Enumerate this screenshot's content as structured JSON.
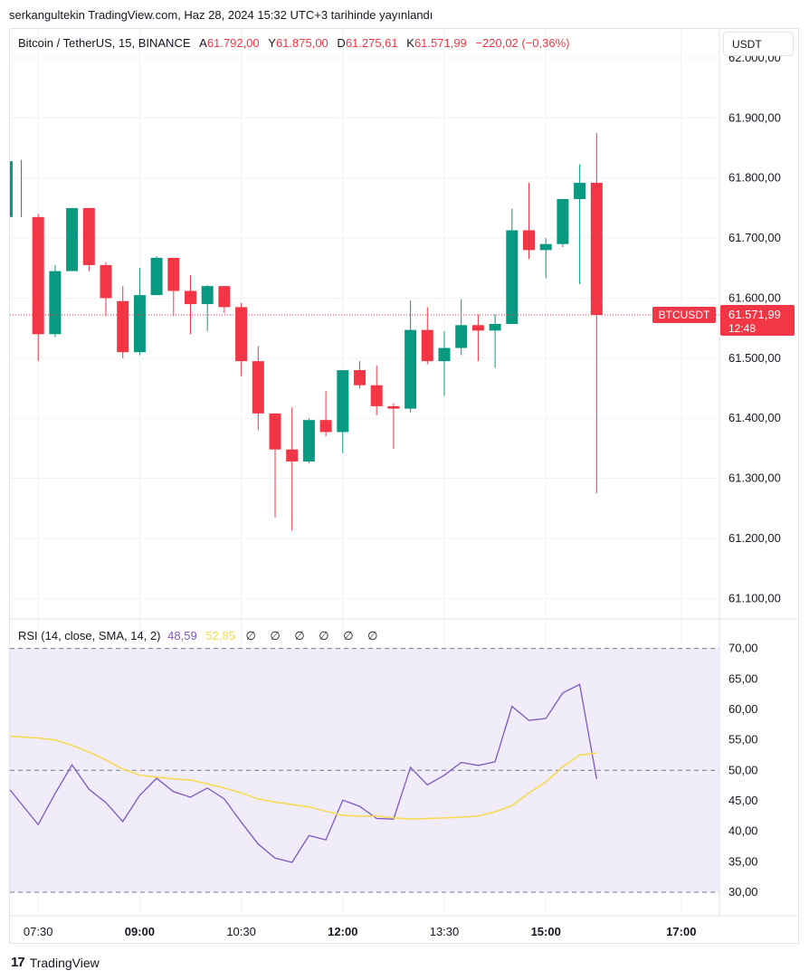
{
  "header": {
    "text": "serkangultekin TradingView.com, Haz 28, 2024 15:32 UTC+3 tarihinde yayınlandı"
  },
  "legend": {
    "symbol": "Bitcoin / TetherUS, 15, BINANCE",
    "a_label": "A",
    "a_value": "61.792,00",
    "y_label": "Y",
    "y_value": "61.875,00",
    "d_label": "D",
    "d_value": "61.275,61",
    "k_label": "K",
    "k_value": "61.571,99",
    "change": "−220,02 (−0,36%)"
  },
  "currency": "USDT",
  "price_tag": {
    "symbol": "BTCUSDT",
    "price": "61.571,99",
    "countdown": "12:48"
  },
  "rsi_legend": {
    "title": "RSI (14, close, SMA, 14, 2)",
    "rsi_value": "48,59",
    "sma_value": "52,85",
    "nulls": "∅ ∅ ∅ ∅ ∅ ∅"
  },
  "footer": {
    "brand": "TradingView",
    "mark": "17"
  },
  "colors": {
    "up": "#089981",
    "down": "#f23645",
    "rsi_line": "#7e57c2",
    "sma_line": "#f7d94c",
    "rsi_band": "#f0ecf9"
  },
  "chart_data": [
    {
      "type": "candlestick",
      "price_ticks": [
        "62.000,00",
        "61.900,00",
        "61.800,00",
        "61.700,00",
        "61.600,00",
        "61.500,00",
        "61.400,00",
        "61.300,00",
        "61.200,00",
        "61.100,00"
      ],
      "price_tick_values": [
        62000,
        61900,
        61800,
        61700,
        61600,
        61500,
        61400,
        61300,
        61200,
        61100
      ],
      "last_price": 61571.99,
      "x_ticks": [
        {
          "label": "07:30",
          "bar": 1
        },
        {
          "label": "09:00",
          "bar": 7
        },
        {
          "label": "10:30",
          "bar": 13
        },
        {
          "label": "12:00",
          "bar": 19
        },
        {
          "label": "13:30",
          "bar": 25
        },
        {
          "label": "15:00",
          "bar": 31
        },
        {
          "label": "17:00",
          "bar": 39
        }
      ],
      "candles": [
        {
          "o": 61735,
          "h": 61830,
          "l": 61735,
          "c": 61828
        },
        {
          "o": 61735,
          "h": 61740,
          "l": 61495,
          "c": 61540
        },
        {
          "o": 61540,
          "h": 61655,
          "l": 61535,
          "c": 61645
        },
        {
          "o": 61645,
          "h": 61750,
          "l": 61645,
          "c": 61750
        },
        {
          "o": 61750,
          "h": 61750,
          "l": 61645,
          "c": 61655
        },
        {
          "o": 61655,
          "h": 61660,
          "l": 61570,
          "c": 61600
        },
        {
          "o": 61595,
          "h": 61620,
          "l": 61500,
          "c": 61510
        },
        {
          "o": 61510,
          "h": 61650,
          "l": 61505,
          "c": 61605
        },
        {
          "o": 61605,
          "h": 61670,
          "l": 61605,
          "c": 61667
        },
        {
          "o": 61667,
          "h": 61667,
          "l": 61570,
          "c": 61612
        },
        {
          "o": 61612,
          "h": 61638,
          "l": 61540,
          "c": 61590
        },
        {
          "o": 61590,
          "h": 61622,
          "l": 61545,
          "c": 61620
        },
        {
          "o": 61620,
          "h": 61620,
          "l": 61575,
          "c": 61585
        },
        {
          "o": 61585,
          "h": 61592,
          "l": 61470,
          "c": 61495
        },
        {
          "o": 61495,
          "h": 61520,
          "l": 61380,
          "c": 61408
        },
        {
          "o": 61408,
          "h": 61408,
          "l": 61235,
          "c": 61348
        },
        {
          "o": 61348,
          "h": 61418,
          "l": 61213,
          "c": 61328
        },
        {
          "o": 61328,
          "h": 61400,
          "l": 61325,
          "c": 61397
        },
        {
          "o": 61397,
          "h": 61445,
          "l": 61370,
          "c": 61377
        },
        {
          "o": 61377,
          "h": 61480,
          "l": 61342,
          "c": 61480
        },
        {
          "o": 61480,
          "h": 61495,
          "l": 61450,
          "c": 61455
        },
        {
          "o": 61455,
          "h": 61488,
          "l": 61405,
          "c": 61420
        },
        {
          "o": 61420,
          "h": 61425,
          "l": 61349,
          "c": 61416
        },
        {
          "o": 61416,
          "h": 61596,
          "l": 61410,
          "c": 61547
        },
        {
          "o": 61547,
          "h": 61585,
          "l": 61490,
          "c": 61495
        },
        {
          "o": 61495,
          "h": 61545,
          "l": 61437,
          "c": 61517
        },
        {
          "o": 61517,
          "h": 61598,
          "l": 61505,
          "c": 61555
        },
        {
          "o": 61555,
          "h": 61573,
          "l": 61495,
          "c": 61546
        },
        {
          "o": 61546,
          "h": 61573,
          "l": 61484,
          "c": 61557
        },
        {
          "o": 61557,
          "h": 61749,
          "l": 61557,
          "c": 61713
        },
        {
          "o": 61713,
          "h": 61792,
          "l": 61665,
          "c": 61680
        },
        {
          "o": 61680,
          "h": 61700,
          "l": 61633,
          "c": 61690
        },
        {
          "o": 61690,
          "h": 61765,
          "l": 61685,
          "c": 61765
        },
        {
          "o": 61765,
          "h": 61823,
          "l": 61623,
          "c": 61792
        },
        {
          "o": 61792,
          "h": 61875,
          "l": 61275,
          "c": 61572
        }
      ]
    },
    {
      "type": "line",
      "title": "RSI (14, close, SMA, 14, 2)",
      "y_ticks": [
        "70,00",
        "65,00",
        "60,00",
        "55,00",
        "50,00",
        "45,00",
        "40,00",
        "35,00",
        "30,00"
      ],
      "y_tick_values": [
        70,
        65,
        60,
        55,
        50,
        45,
        40,
        35,
        30
      ],
      "band": [
        30,
        70
      ],
      "midline": 50,
      "series": [
        {
          "name": "RSI",
          "values": [
            46.8,
            41.1,
            46.2,
            50.9,
            46.9,
            44.7,
            41.6,
            45.9,
            48.7,
            46.5,
            45.6,
            47.1,
            45.3,
            41.5,
            37.9,
            35.6,
            34.9,
            39.3,
            38.6,
            45.1,
            44.1,
            42.1,
            42.0,
            50.5,
            47.6,
            49.2,
            51.3,
            50.8,
            51.4,
            60.5,
            58.2,
            58.5,
            62.7,
            64.1,
            48.59
          ]
        },
        {
          "name": "SMA",
          "values": [
            55.6,
            55.3,
            55.0,
            54.1,
            53.0,
            51.7,
            50.2,
            49.2,
            48.9,
            48.6,
            48.4,
            47.8,
            47.1,
            46.3,
            45.3,
            44.8,
            44.4,
            44.0,
            43.3,
            42.6,
            42.5,
            42.5,
            42.2,
            42.0,
            42.1,
            42.2,
            42.3,
            42.5,
            43.2,
            44.2,
            46.3,
            48.1,
            50.6,
            52.5,
            52.85
          ]
        }
      ]
    }
  ]
}
